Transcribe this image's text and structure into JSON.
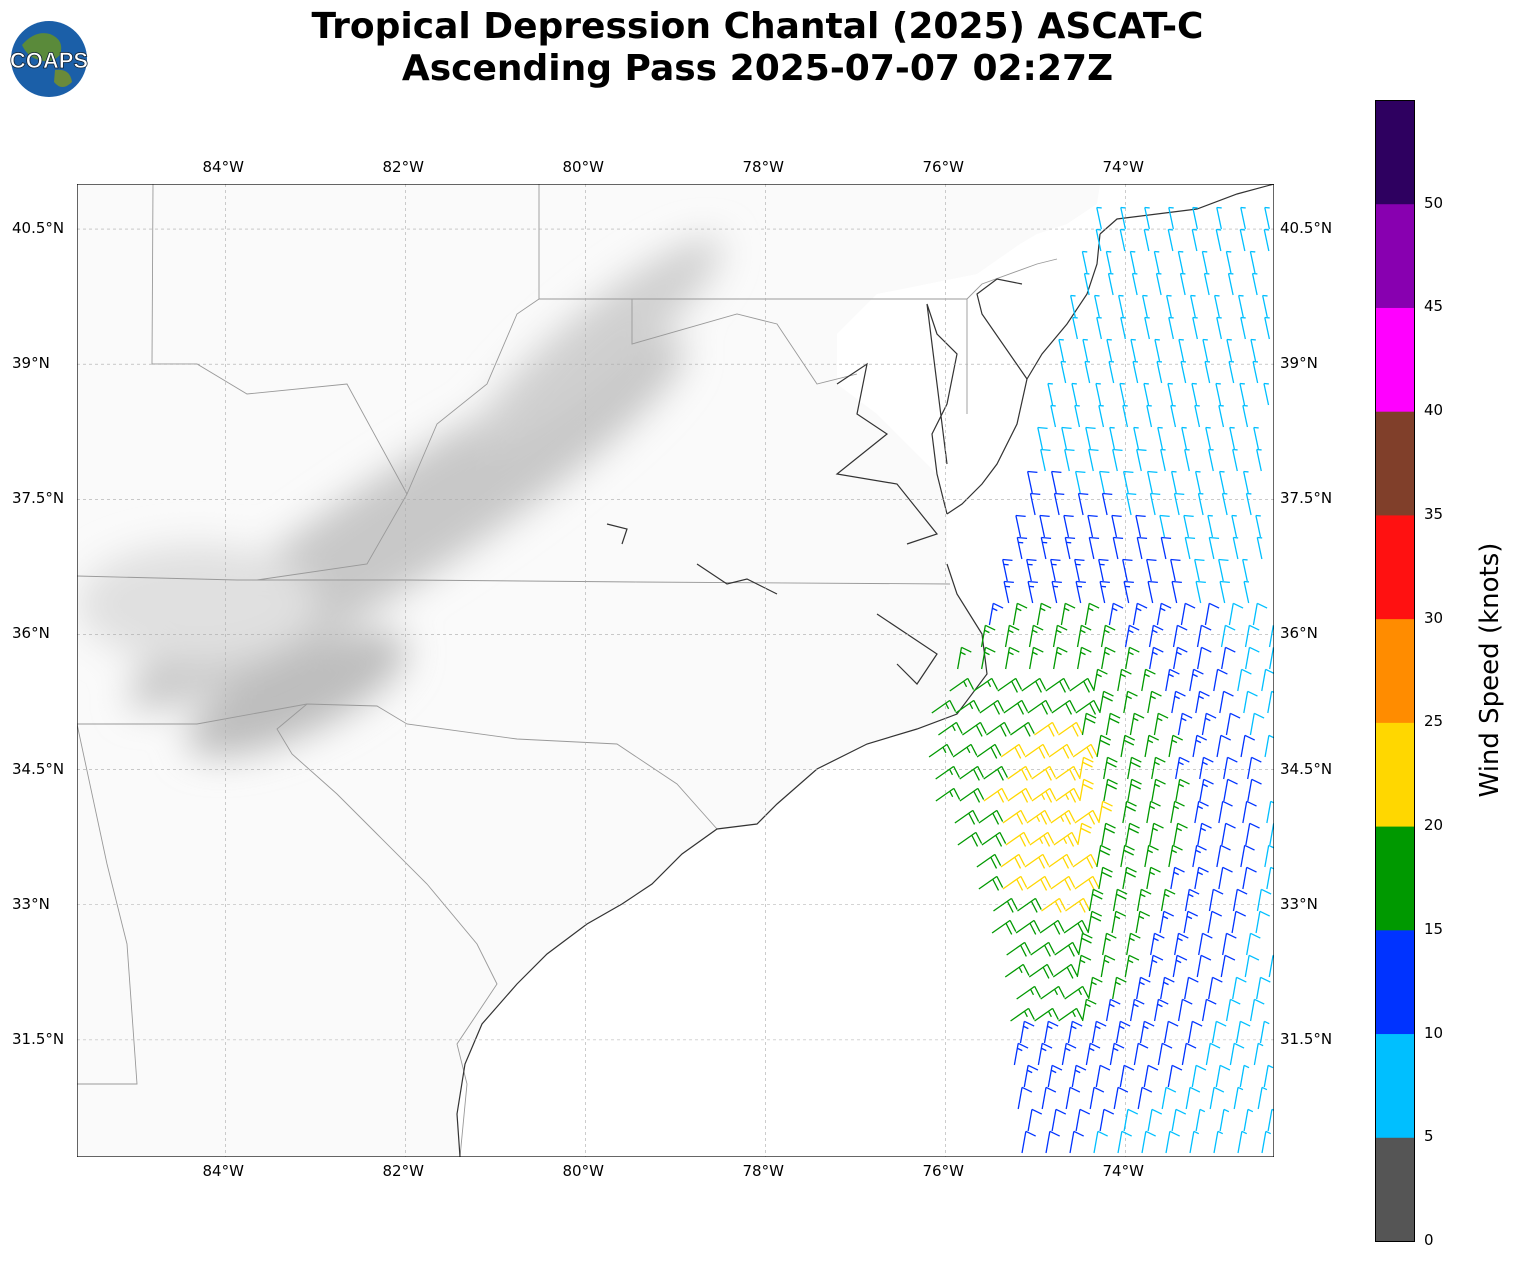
{
  "title_line1": "Tropical Depression Chantal (2025) ASCAT-C",
  "title_line2": "Ascending Pass 2025-07-07 02:27Z",
  "logo_text": "COAPS",
  "lon_labels": [
    "84°W",
    "82°W",
    "80°W",
    "78°W",
    "76°W",
    "74°W"
  ],
  "lat_labels": [
    "40.5°N",
    "39°N",
    "37.5°N",
    "36°N",
    "34.5°N",
    "33°N",
    "31.5°N"
  ],
  "map_extent": {
    "lon_min": -85.65,
    "lon_max": -72.35,
    "lat_min": 30.2,
    "lat_max": 41.0
  },
  "colorbar": {
    "label": "Wind Speed (knots)",
    "ticks": [
      "0",
      "5",
      "10",
      "15",
      "20",
      "25",
      "30",
      "35",
      "40",
      "45",
      "50"
    ],
    "max": 55,
    "colors": [
      "#555555",
      "#00bfff",
      "#0033ff",
      "#009900",
      "#ffd700",
      "#ff8c00",
      "#ff1111",
      "#803f2a",
      "#ff00ff",
      "#8800b0",
      "#2e0060"
    ]
  }
}
